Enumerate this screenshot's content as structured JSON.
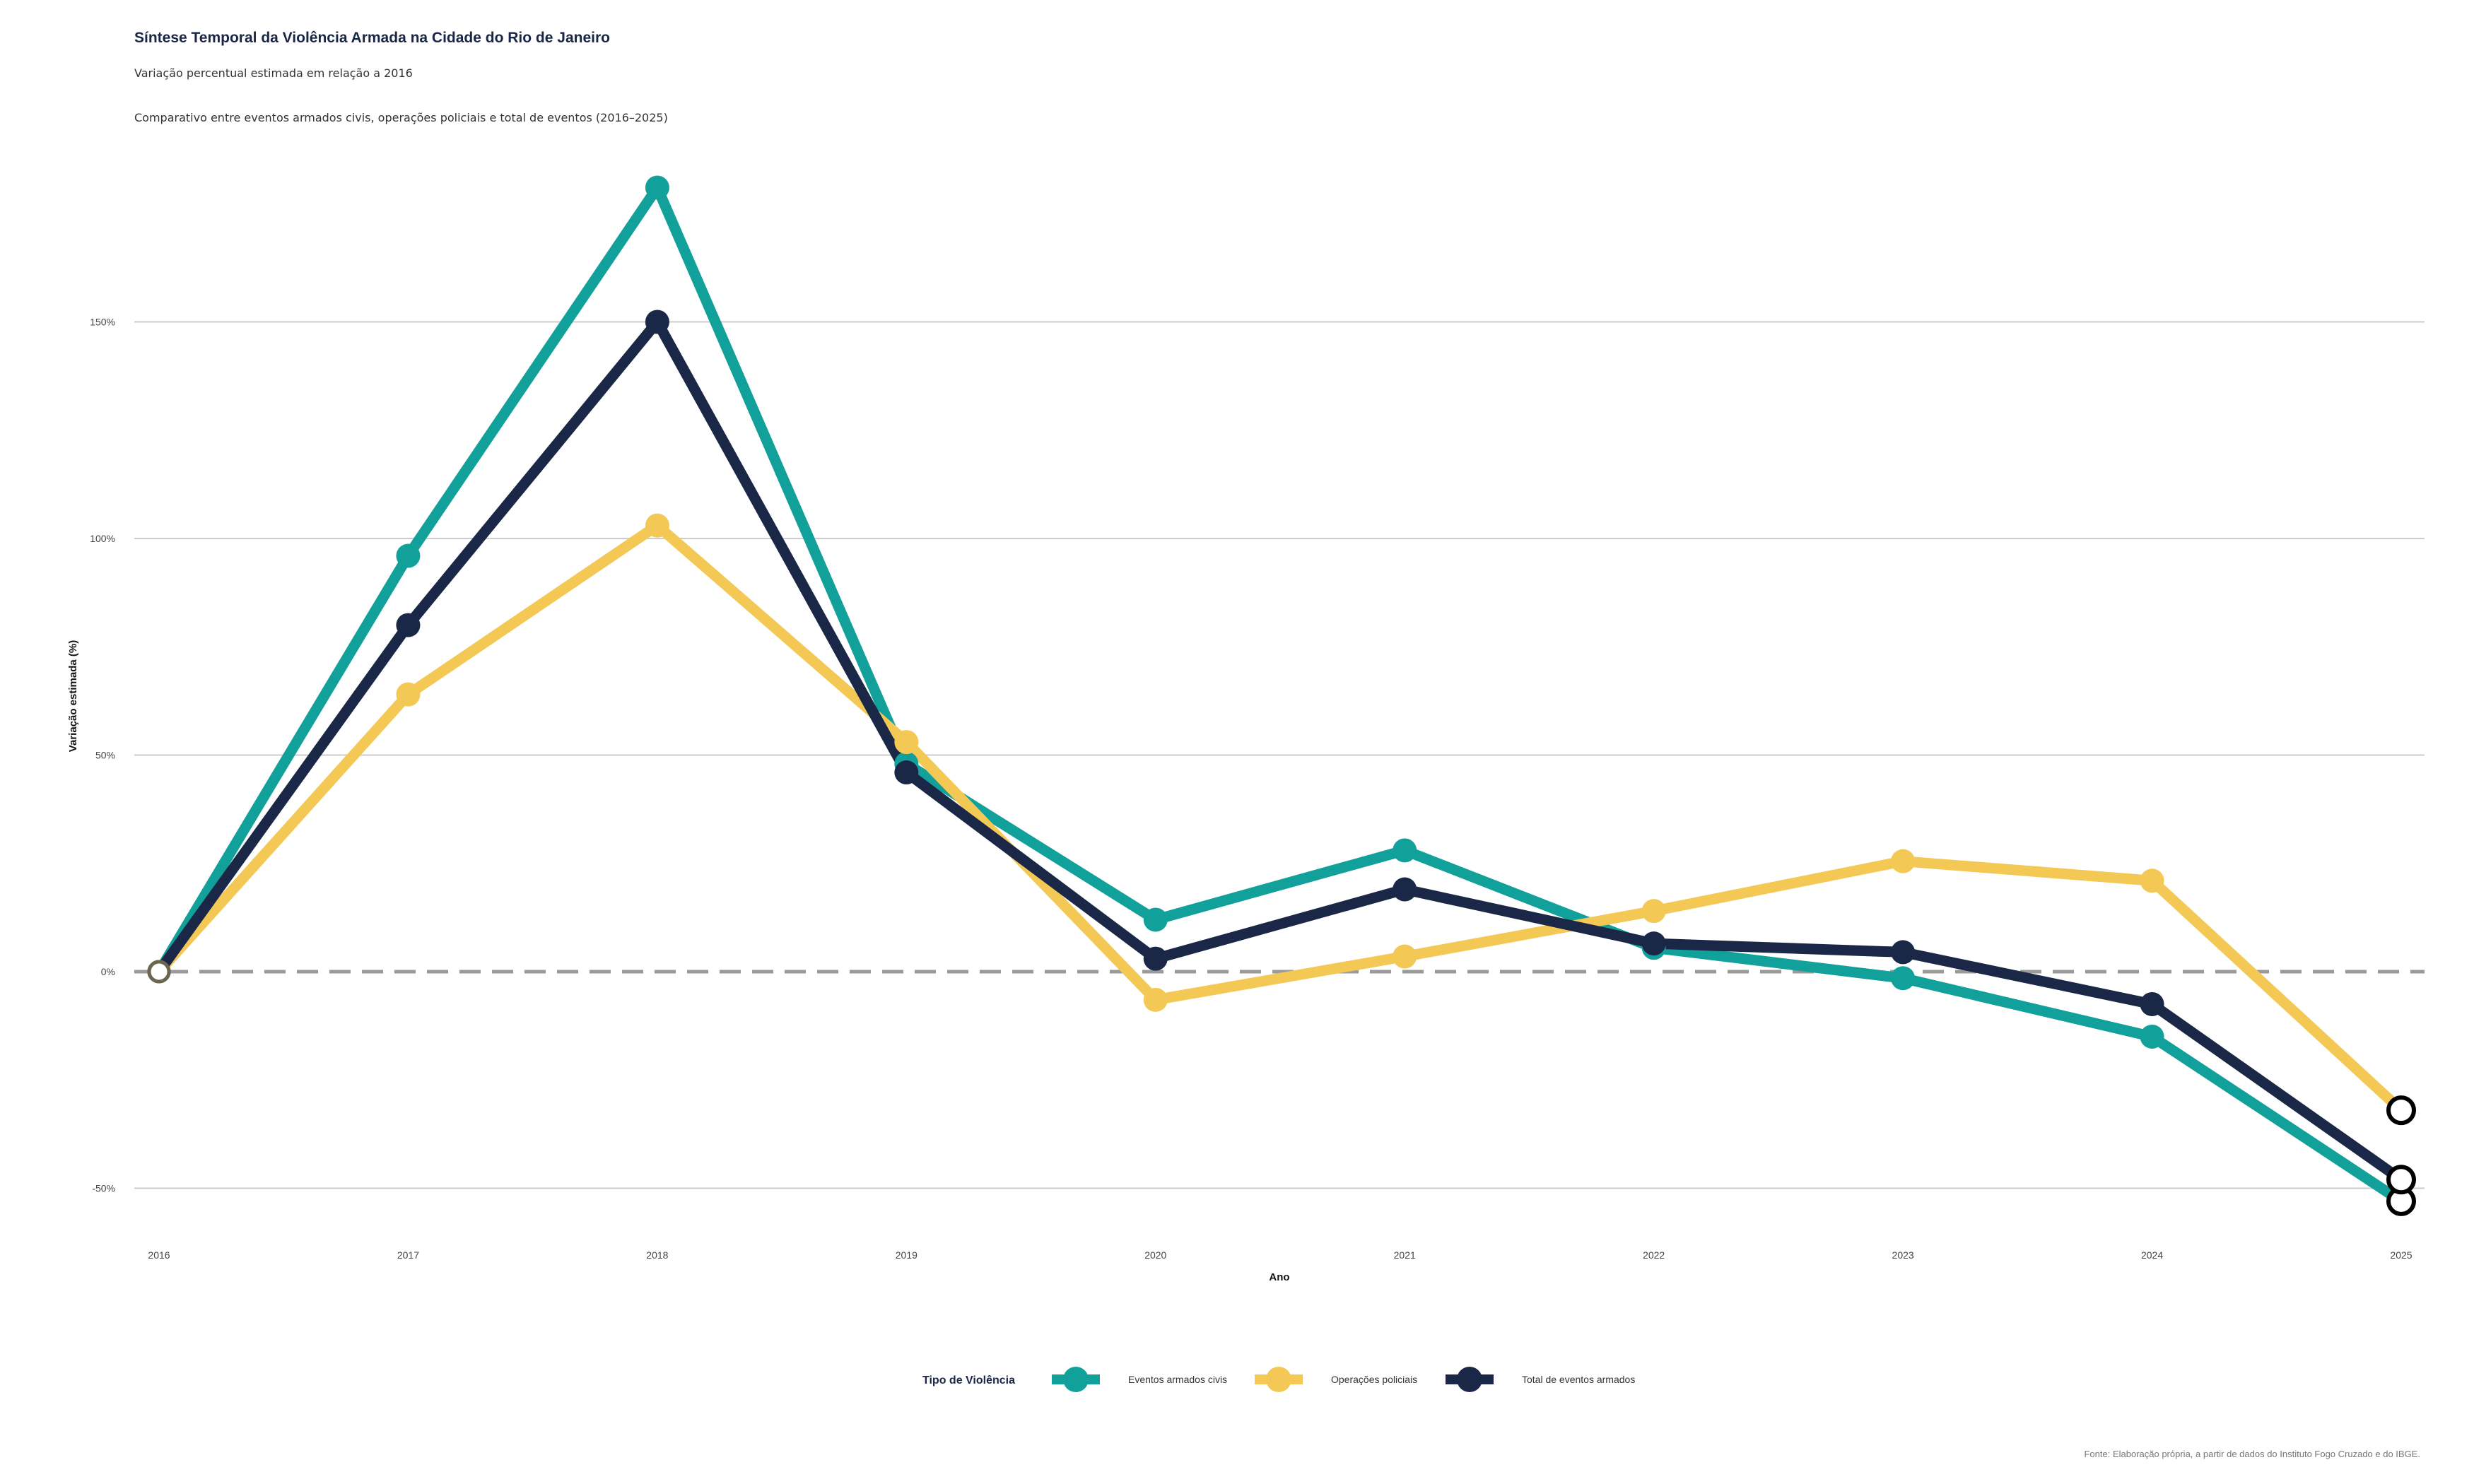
{
  "header": {
    "title": "Síntese Temporal da Violência Armada na Cidade do Rio de Janeiro",
    "subtitle": "Variação percentual estimada em relação a 2016",
    "caption": "Comparativo entre eventos armados civis, operações policiais e total de eventos (2016–2025)"
  },
  "footer": {
    "source": "Fonte: Elaboração própria, a partir de dados do Instituto Fogo Cruzado e do IBGE."
  },
  "chart_data": {
    "type": "line",
    "title": "Síntese Temporal da Violência Armada na Cidade do Rio de Janeiro",
    "xlabel": "Ano",
    "ylabel": "Variação estimada (%)",
    "categories": [
      "2016",
      "2017",
      "2018",
      "2019",
      "2020",
      "2021",
      "2022",
      "2023",
      "2024",
      "2025"
    ],
    "ylim": [
      -60,
      185
    ],
    "yticks": [
      -50,
      0,
      50,
      100,
      150
    ],
    "ytick_labels": [
      "-50%",
      "0%",
      "50%",
      "100%",
      "150%"
    ],
    "reference_line": 0,
    "legend_title": "Tipo de Violência",
    "legend_position": "bottom-center",
    "series": [
      {
        "name": "Eventos armados civis",
        "color": "#12a19a",
        "values": [
          0,
          96,
          181,
          48,
          12,
          28,
          5.5,
          -1.5,
          -15,
          -53
        ]
      },
      {
        "name": "Operações policiais",
        "color": "#f4c855",
        "values": [
          0,
          64,
          103,
          53,
          -6.5,
          3.5,
          14,
          25.5,
          21,
          -32
        ]
      },
      {
        "name": "Total de eventos armados",
        "color": "#1b2747",
        "values": [
          0,
          80,
          150,
          46,
          3,
          19,
          6.5,
          4.5,
          -7.5,
          -48
        ]
      }
    ]
  }
}
